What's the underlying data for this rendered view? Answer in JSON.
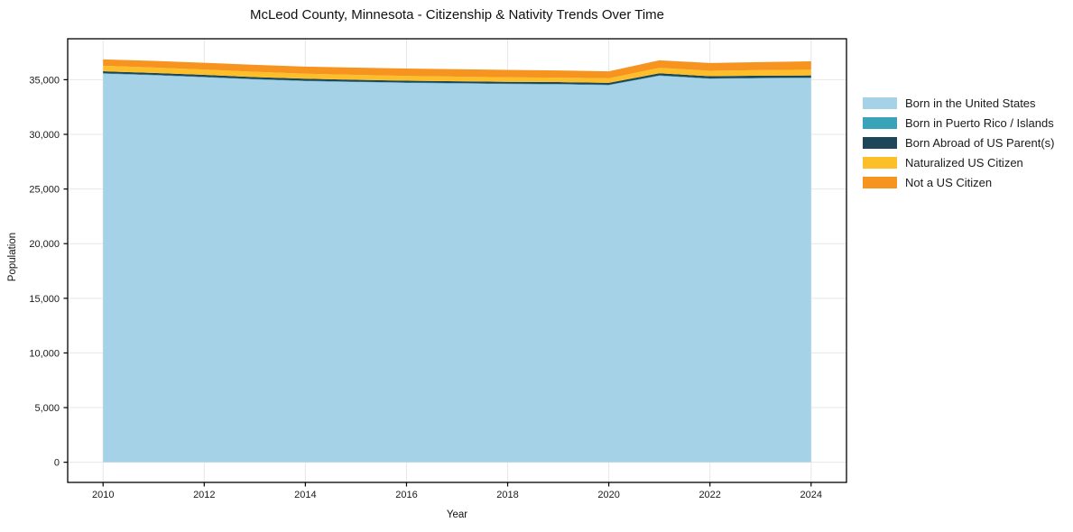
{
  "chart_data": {
    "type": "area",
    "stacked": true,
    "title": "McLeod County, Minnesota - Citizenship & Nativity Trends Over Time",
    "xlabel": "Year",
    "ylabel": "Population",
    "x": [
      2010,
      2011,
      2012,
      2013,
      2014,
      2015,
      2016,
      2017,
      2018,
      2019,
      2020,
      2021,
      2022,
      2023,
      2024
    ],
    "series": [
      {
        "name": "Born in the United States",
        "color": "#a6d2e7",
        "values": [
          35550,
          35400,
          35220,
          35020,
          34870,
          34780,
          34700,
          34650,
          34600,
          34570,
          34500,
          35350,
          35080,
          35130,
          35150
        ]
      },
      {
        "name": "Born in Puerto Rico / Islands",
        "color": "#3aa2b9",
        "values": [
          40,
          40,
          40,
          40,
          40,
          40,
          40,
          40,
          40,
          40,
          40,
          40,
          40,
          40,
          40
        ]
      },
      {
        "name": "Born Abroad of US Parent(s)",
        "color": "#1f4558",
        "values": [
          180,
          180,
          180,
          180,
          180,
          175,
          170,
          170,
          170,
          170,
          170,
          200,
          200,
          200,
          200
        ]
      },
      {
        "name": "Naturalized US Citizen",
        "color": "#fcbf2a",
        "values": [
          510,
          500,
          490,
          480,
          460,
          445,
          430,
          420,
          410,
          410,
          420,
          490,
          500,
          510,
          530
        ]
      },
      {
        "name": "Not a US Citizen",
        "color": "#f79420",
        "values": [
          580,
          600,
          620,
          640,
          650,
          660,
          680,
          680,
          680,
          660,
          630,
          700,
          710,
          730,
          760
        ]
      }
    ],
    "xticks": [
      2010,
      2012,
      2014,
      2016,
      2018,
      2020,
      2022,
      2024
    ],
    "ytick_labels": [
      "0",
      "5,000",
      "10,000",
      "15,000",
      "20,000",
      "25,000",
      "30,000",
      "35,000"
    ],
    "yticks": [
      0,
      5000,
      10000,
      15000,
      20000,
      25000,
      30000,
      35000
    ],
    "xlim": [
      2009.3,
      2024.7
    ],
    "ylim": [
      -1845,
      38745
    ],
    "grid": true,
    "legend_position": "right",
    "colors": {
      "grid": "#e7e7e7",
      "spine": "#000000",
      "text": "#1a1a1a",
      "background": "#ffffff"
    }
  }
}
